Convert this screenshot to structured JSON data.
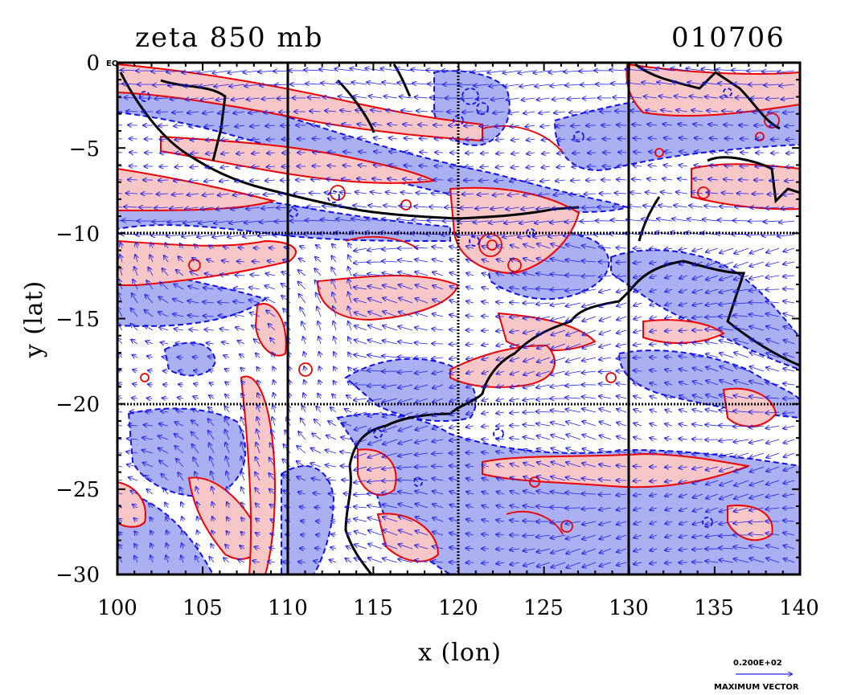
{
  "plot": {
    "title_left": "zeta 850 mb",
    "title_right": "010706",
    "corner_label": "EQ",
    "xlabel": "x (lon)",
    "ylabel": "y (lat)",
    "x_ticks": [
      "100",
      "105",
      "110",
      "115",
      "120",
      "125",
      "130",
      "135",
      "140"
    ],
    "y_ticks": [
      "0",
      "−5",
      "−10",
      "−15",
      "−20",
      "−25",
      "−30"
    ],
    "vector_value": "0.200E+02",
    "vector_caption": "MAXIMUM VECTOR"
  },
  "map_data": {
    "type": "contour-vector-map",
    "lon_range": [
      100,
      140
    ],
    "lat_range": [
      -30,
      0
    ],
    "grid_lon": [
      110,
      120,
      130
    ],
    "grid_lat": [
      -10,
      -20
    ],
    "colors": {
      "positive_fill": "#f7c6c6",
      "positive_line": "#ee0000",
      "negative_fill": "#aab0f2",
      "negative_line": "#1010ee",
      "coast": "#000000",
      "vector": "#2020ee"
    }
  }
}
